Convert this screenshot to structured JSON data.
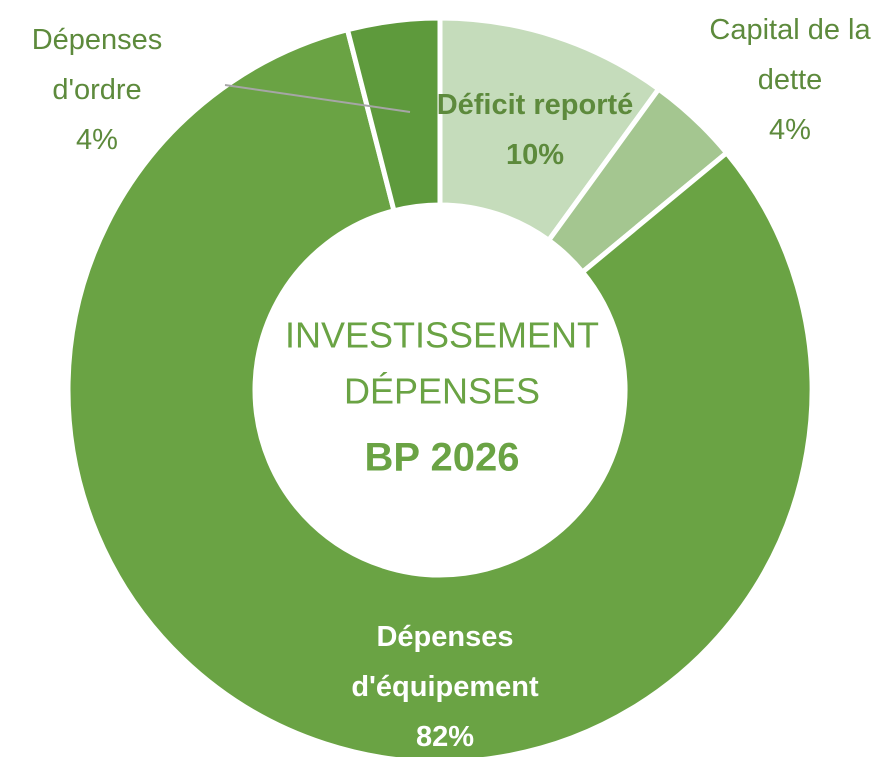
{
  "chart_data": {
    "type": "donut",
    "title": [
      "INVESTISSEMENT",
      "DÉPENSES"
    ],
    "subtitle": "BP 2026",
    "categories": [
      "Déficit reporté",
      "Capital de la dette",
      "Dépenses d'équipement",
      "Dépenses d'ordre"
    ],
    "values": [
      10,
      4,
      82,
      4
    ],
    "value_labels": [
      "10%",
      "4%",
      "82%",
      "4%"
    ],
    "colors": [
      "#c5dcbb",
      "#a4c690",
      "#6aa344",
      "#5e9a3c"
    ]
  }
}
